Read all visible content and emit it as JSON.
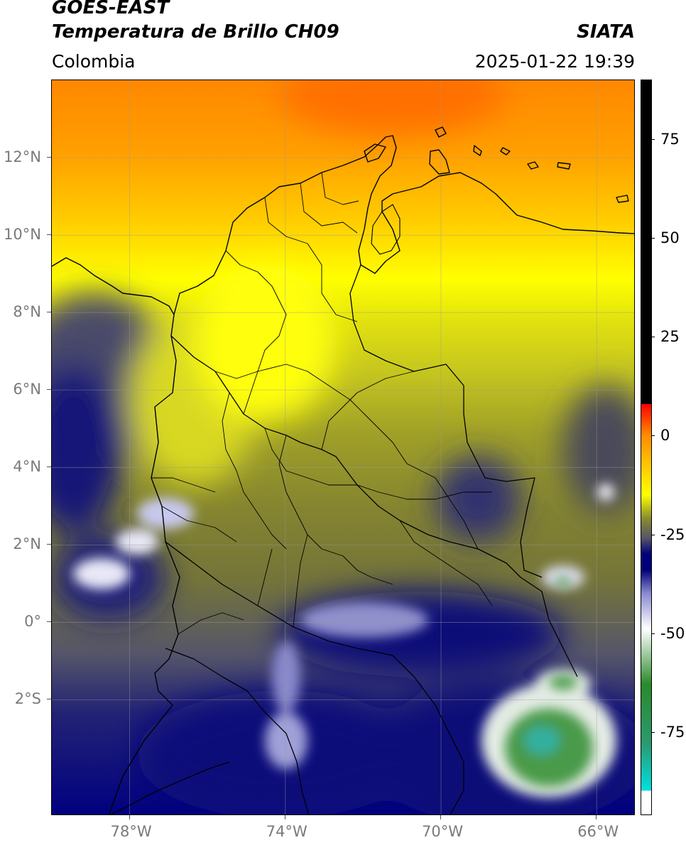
{
  "header": {
    "title_line1": "GOES-EAST",
    "title_line2": "Temperatura de Brillo CH09",
    "region": "Colombia",
    "organization": "SIATA",
    "datetime": "2025-01-22 19:39"
  },
  "map": {
    "lon_range": [
      -80,
      -65
    ],
    "lat_range": [
      -5,
      14
    ],
    "lat_ticks": [
      {
        "value": 12,
        "label": "12°N"
      },
      {
        "value": 10,
        "label": "10°N"
      },
      {
        "value": 8,
        "label": "8°N"
      },
      {
        "value": 6,
        "label": "6°N"
      },
      {
        "value": 4,
        "label": "4°N"
      },
      {
        "value": 2,
        "label": "2°N"
      },
      {
        "value": 0,
        "label": "0°"
      },
      {
        "value": -2,
        "label": "2°S"
      }
    ],
    "lon_ticks": [
      {
        "value": -78,
        "label": "78°W"
      },
      {
        "value": -74,
        "label": "74°W"
      },
      {
        "value": -70,
        "label": "70°W"
      },
      {
        "value": -66,
        "label": "66°W"
      }
    ],
    "grid": true
  },
  "colorbar": {
    "range": [
      -96,
      90
    ],
    "ticks": [
      {
        "value": 75,
        "label": "75"
      },
      {
        "value": 50,
        "label": "50"
      },
      {
        "value": 25,
        "label": "25"
      },
      {
        "value": 0,
        "label": "0"
      },
      {
        "value": -25,
        "label": "-25"
      },
      {
        "value": -50,
        "label": "-50"
      },
      {
        "value": -75,
        "label": "-75"
      }
    ],
    "colors": {
      "black": "#000000",
      "red": "#ff0000",
      "orange": "#ff8c00",
      "yellow": "#ffff00",
      "olive": "#8a8a30",
      "gray": "#555566",
      "navy": "#00007a",
      "white": "#ffffff",
      "green": "#2a8a2a",
      "cyan": "#00e0e0"
    }
  }
}
